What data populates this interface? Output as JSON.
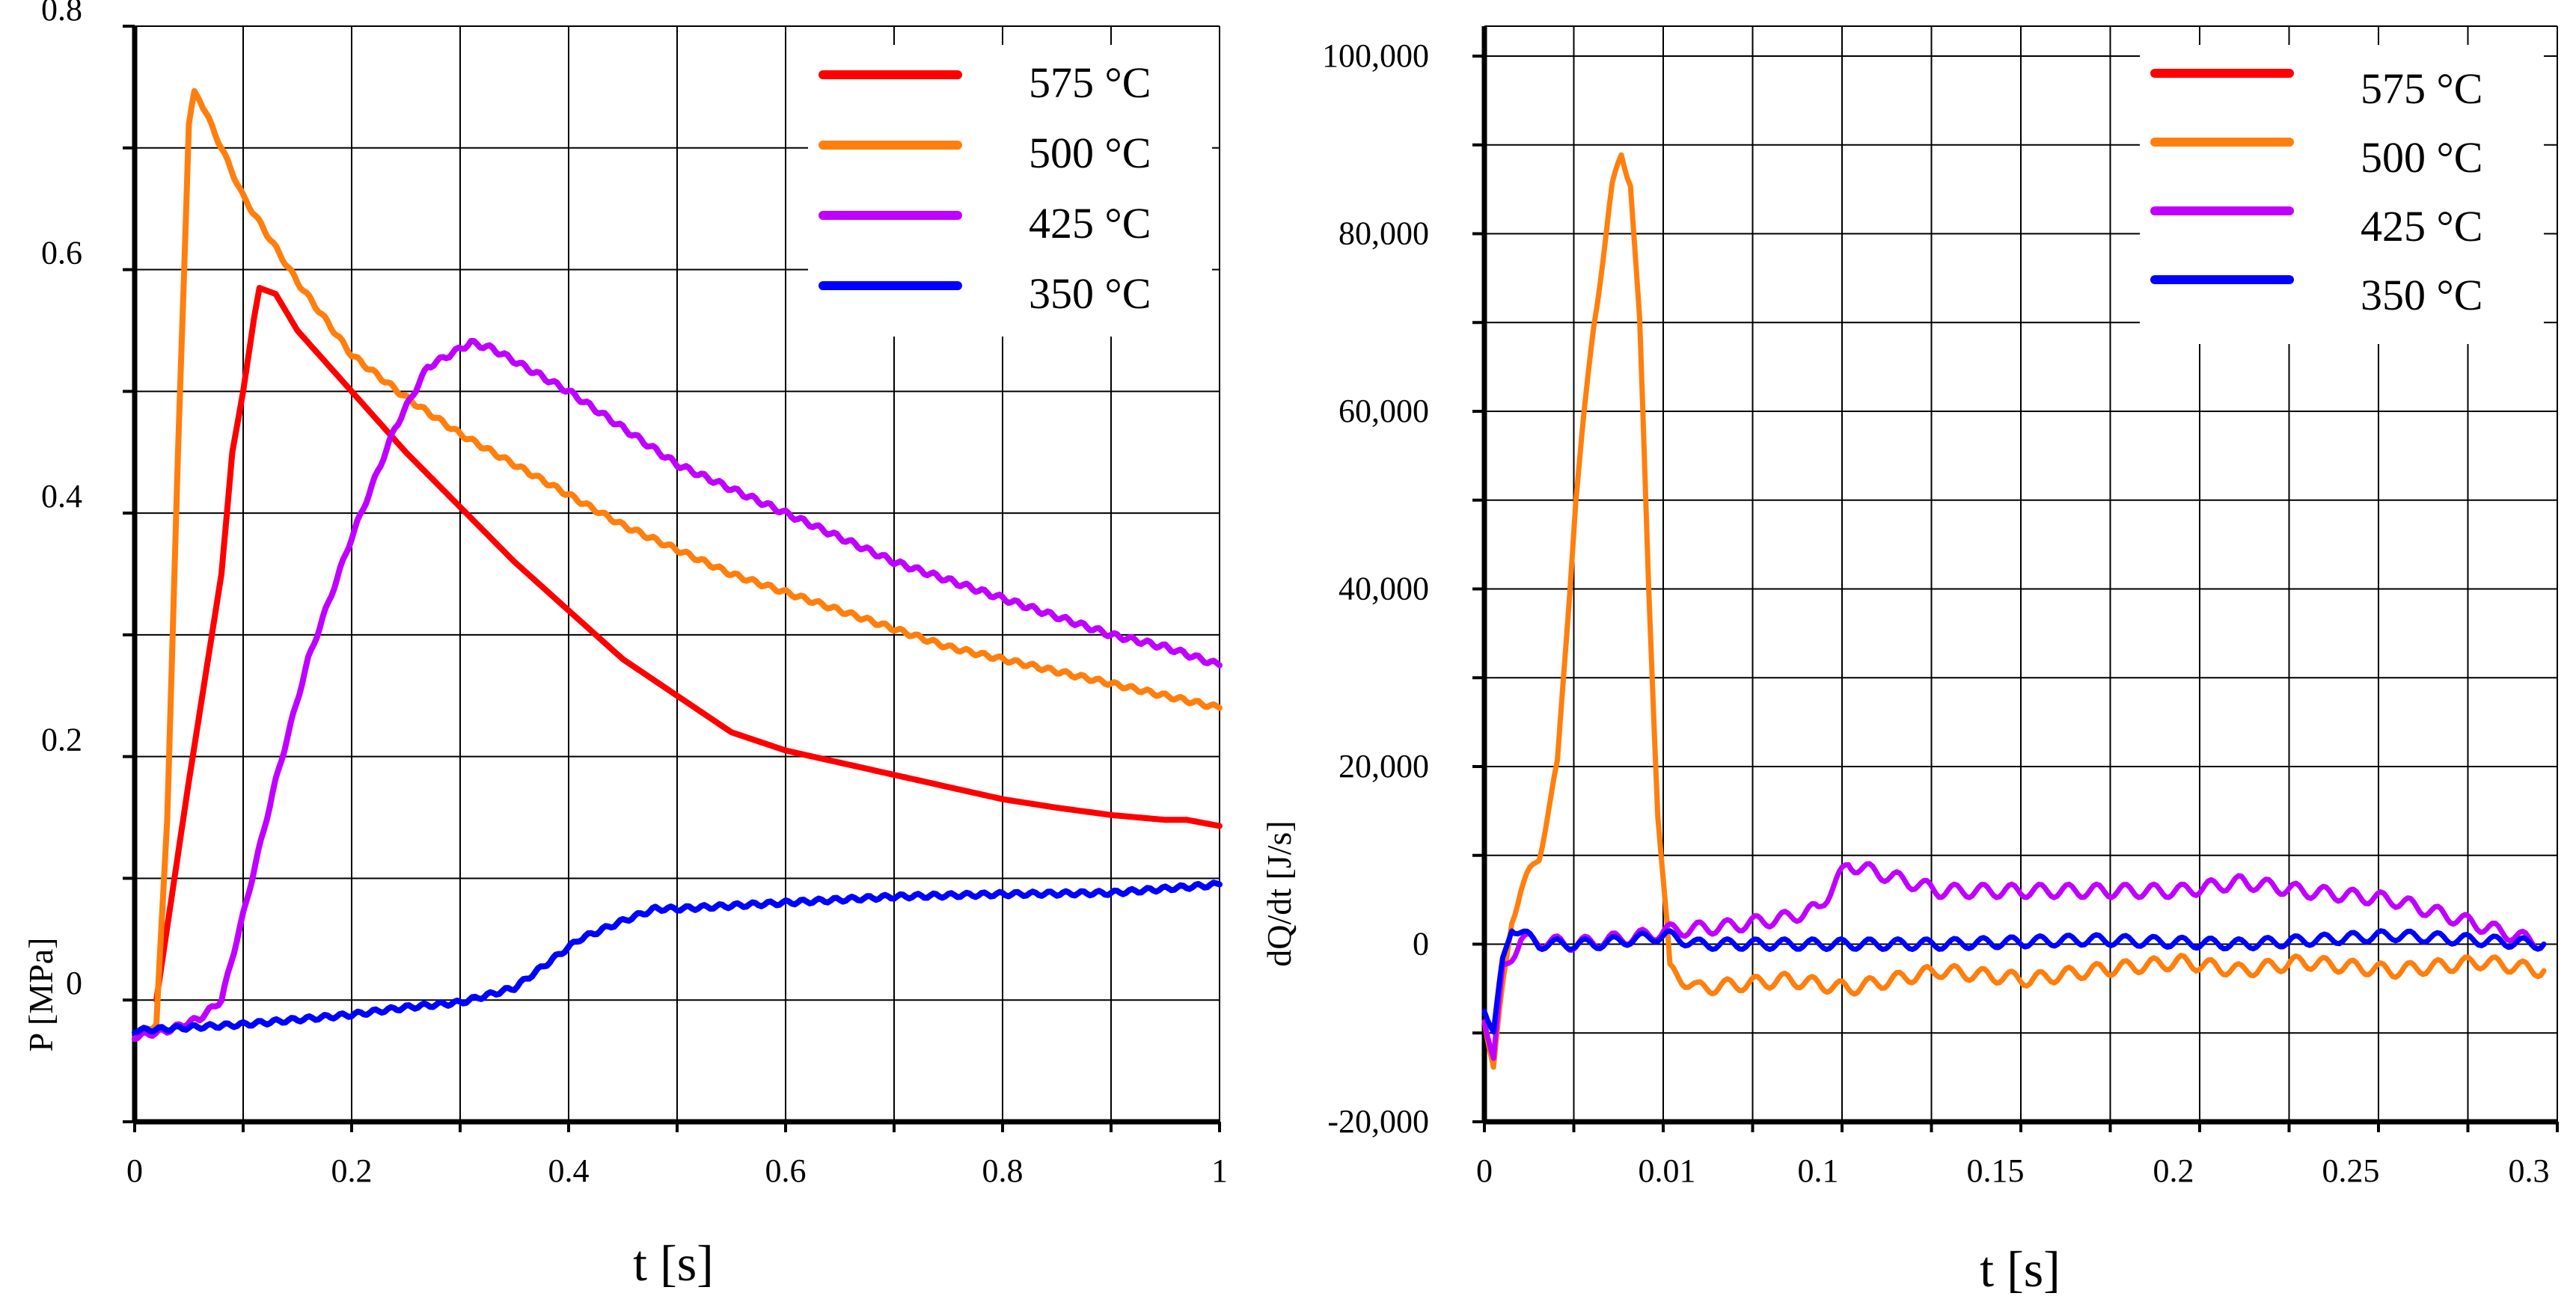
{
  "chart_data": [
    {
      "type": "line",
      "xlabel": "t [s]",
      "ylabel": "P [MPa]",
      "xlim": [
        0,
        1
      ],
      "ylim": [
        -0.1,
        0.8
      ],
      "xticks": [
        "0",
        "0.2",
        "0.4",
        "0.6",
        "0.8",
        "1"
      ],
      "yticks": [
        "0",
        "0.2",
        "0.4",
        "0.6",
        "0.8"
      ],
      "grid": true,
      "legend": "top-right",
      "series": [
        {
          "name": "575 °C",
          "color": "#ff0000",
          "x": [
            0.02,
            0.05,
            0.08,
            0.09,
            0.1,
            0.11,
            0.115,
            0.13,
            0.15,
            0.2,
            0.25,
            0.3,
            0.35,
            0.4,
            0.45,
            0.5,
            0.55,
            0.6,
            0.65,
            0.7,
            0.75,
            0.8,
            0.85,
            0.9,
            0.95,
            0.97,
            1.0
          ],
          "y": [
            0.0,
            0.18,
            0.35,
            0.45,
            0.5,
            0.56,
            0.585,
            0.58,
            0.55,
            0.5,
            0.45,
            0.405,
            0.36,
            0.32,
            0.28,
            0.25,
            0.22,
            0.205,
            0.195,
            0.185,
            0.175,
            0.165,
            0.158,
            0.152,
            0.148,
            0.148,
            0.143
          ]
        },
        {
          "name": "500 °C",
          "color": "#ff7f0e",
          "x": [
            0.0,
            0.02,
            0.03,
            0.04,
            0.05,
            0.055,
            0.06,
            0.08,
            0.1,
            0.15,
            0.2,
            0.25,
            0.3,
            0.35,
            0.4,
            0.45,
            0.5,
            0.55,
            0.6,
            0.65,
            0.7,
            0.75,
            0.8,
            0.85,
            0.9,
            0.95,
            1.0
          ],
          "y": [
            -0.03,
            -0.02,
            0.15,
            0.45,
            0.72,
            0.745,
            0.74,
            0.7,
            0.66,
            0.59,
            0.53,
            0.495,
            0.465,
            0.44,
            0.415,
            0.39,
            0.37,
            0.35,
            0.335,
            0.32,
            0.305,
            0.29,
            0.28,
            0.27,
            0.26,
            0.25,
            0.24
          ]
        },
        {
          "name": "425 °C",
          "color": "#c000ff",
          "x": [
            0.0,
            0.03,
            0.06,
            0.08,
            0.1,
            0.13,
            0.16,
            0.2,
            0.24,
            0.27,
            0.29,
            0.31,
            0.33,
            0.36,
            0.4,
            0.45,
            0.5,
            0.55,
            0.6,
            0.65,
            0.7,
            0.75,
            0.8,
            0.85,
            0.9,
            0.95,
            1.0
          ],
          "y": [
            -0.03,
            -0.025,
            -0.015,
            0.0,
            0.07,
            0.18,
            0.28,
            0.38,
            0.47,
            0.52,
            0.53,
            0.54,
            0.535,
            0.52,
            0.5,
            0.47,
            0.44,
            0.42,
            0.4,
            0.38,
            0.36,
            0.345,
            0.33,
            0.315,
            0.3,
            0.29,
            0.275
          ]
        },
        {
          "name": "350 °C",
          "color": "#0000ff",
          "x": [
            0.0,
            0.1,
            0.2,
            0.25,
            0.3,
            0.35,
            0.38,
            0.41,
            0.45,
            0.48,
            0.5,
            0.6,
            0.7,
            0.8,
            0.9,
            1.0
          ],
          "y": [
            -0.025,
            -0.02,
            -0.012,
            -0.006,
            -0.002,
            0.01,
            0.03,
            0.05,
            0.065,
            0.075,
            0.075,
            0.08,
            0.085,
            0.087,
            0.088,
            0.095
          ]
        }
      ]
    },
    {
      "type": "line",
      "xlabel": "t [s]",
      "ylabel": "dQ/dt [J/s]",
      "x_scale": "piecewise: 0–0.01 then 0.01–0.3",
      "xticks": [
        "0",
        "0.01",
        "0.1",
        "0.15",
        "0.2",
        "0.25",
        "0.3"
      ],
      "yticks": [
        "-20,000",
        "0",
        "20,000",
        "40,000",
        "60,000",
        "80,000",
        "100,000"
      ],
      "ylim": [
        -20000,
        100000
      ],
      "grid": true,
      "legend": "top-right",
      "series": [
        {
          "name": "575 °C",
          "color": "#ff0000",
          "x": [],
          "y": []
        },
        {
          "name": "500 °C",
          "color": "#ff7f0e",
          "x": [
            0.0,
            0.0005,
            0.001,
            0.0015,
            0.002,
            0.003,
            0.004,
            0.005,
            0.006,
            0.007,
            0.0075,
            0.008,
            0.0085,
            0.009,
            0.0095,
            0.01,
            0.011,
            0.02,
            0.05,
            0.07,
            0.1,
            0.13,
            0.15,
            0.18,
            0.2,
            0.22,
            0.25,
            0.28,
            0.3
          ],
          "y": [
            -8000,
            -14000,
            -5000,
            3000,
            6000,
            10000,
            20000,
            50000,
            70000,
            85000,
            89000,
            86000,
            70000,
            40000,
            15000,
            2000,
            -3000,
            -5000,
            -4000,
            -5000,
            -3000,
            -4000,
            -3000,
            -2000,
            -3000,
            -2000,
            -3000,
            -2000,
            -3000
          ]
        },
        {
          "name": "425 °C",
          "color": "#c000ff",
          "x": [
            0.0,
            0.0005,
            0.001,
            0.002,
            0.005,
            0.009,
            0.01,
            0.03,
            0.05,
            0.06,
            0.07,
            0.09,
            0.1,
            0.12,
            0.15,
            0.18,
            0.2,
            0.22,
            0.25,
            0.27,
            0.3
          ],
          "y": [
            -8000,
            -13000,
            -3000,
            500,
            0,
            1000,
            1500,
            2000,
            3000,
            4000,
            9000,
            7000,
            6000,
            6000,
            6000,
            6000,
            7000,
            6000,
            5000,
            3000,
            0
          ]
        },
        {
          "name": "350 °C",
          "color": "#0000ff",
          "x": [
            0.0,
            0.0005,
            0.001,
            0.0015,
            0.003,
            0.006,
            0.01,
            0.02,
            0.05,
            0.1,
            0.15,
            0.2,
            0.25,
            0.3
          ],
          "y": [
            -7000,
            -10000,
            -2000,
            2000,
            0,
            0,
            1000,
            0,
            0,
            0,
            500,
            0,
            1000,
            0
          ]
        }
      ]
    }
  ]
}
